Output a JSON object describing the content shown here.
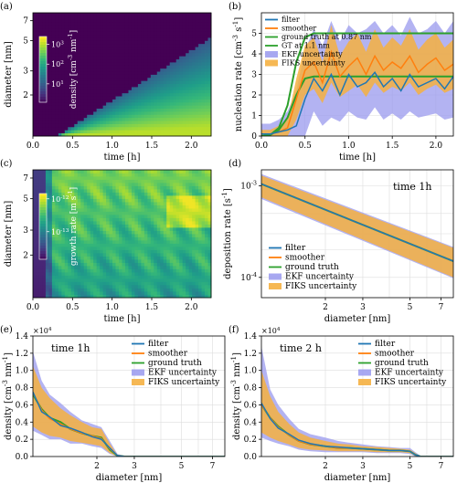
{
  "colors": {
    "filter": "#1f77b4",
    "smoother": "#ff7f0e",
    "ground_truth": "#2ca02c",
    "ekf": "#9999ee",
    "fiks": "#f5b041"
  },
  "chart_data": [
    {
      "id": "a",
      "type": "heatmap",
      "panel_label": "(a)",
      "xlabel": "time [h]",
      "ylabel": "diameter [nm]",
      "xlim": [
        0,
        2.25
      ],
      "ylim": [
        1,
        8
      ],
      "yscale": "log",
      "xticks": [
        "0.0",
        "0.5",
        "1.0",
        "1.5",
        "2.0"
      ],
      "yticks": [
        "2",
        "3",
        "5",
        "7"
      ],
      "colorbar": {
        "label": "density [cm^-3 nm^-1]",
        "ticks": [
          "10^1",
          "10^2",
          "10^3"
        ]
      },
      "description_values": {
        "boundary_time_at_diameter": [
          [
            0.3,
            1.0
          ],
          [
            0.7,
            1.55
          ],
          [
            1.2,
            2.3
          ],
          [
            1.7,
            3.4
          ],
          [
            2.25,
            4.9
          ]
        ]
      }
    },
    {
      "id": "b",
      "type": "line",
      "panel_label": "(b)",
      "xlabel": "time [h]",
      "ylabel": "nucleation rate [cm^-3 s^-1]",
      "xlim": [
        0,
        2.2
      ],
      "ylim": [
        0,
        6
      ],
      "xticks": [
        "0.0",
        "0.5",
        "1.0",
        "1.5",
        "2.0"
      ],
      "yticks": [
        "0",
        "1",
        "2",
        "3",
        "4",
        "5"
      ],
      "legend": [
        "filter",
        "smoother",
        "ground truth at 0.87 nm",
        "GT at 1.1 nm",
        "EKF uncertainty",
        "FIKS uncertainty"
      ],
      "x": [
        0.0,
        0.1,
        0.2,
        0.3,
        0.4,
        0.5,
        0.6,
        0.7,
        0.8,
        0.9,
        1.0,
        1.1,
        1.2,
        1.3,
        1.4,
        1.5,
        1.6,
        1.7,
        1.8,
        1.9,
        2.0,
        2.1,
        2.2
      ],
      "series": [
        {
          "name": "ground truth at 0.87 nm",
          "values": [
            0,
            0.05,
            0.3,
            0.9,
            2.0,
            2.8,
            2.9,
            2.9,
            2.9,
            2.9,
            2.9,
            2.9,
            2.9,
            2.9,
            2.9,
            2.9,
            2.9,
            2.9,
            2.9,
            2.9,
            2.9,
            2.9,
            2.9
          ]
        },
        {
          "name": "GT at 1.1 nm",
          "values": [
            0,
            0.05,
            0.4,
            1.5,
            3.6,
            4.8,
            5.0,
            5.0,
            5.0,
            5.0,
            5.0,
            5.0,
            5.0,
            5.0,
            5.0,
            5.0,
            5.0,
            5.0,
            5.0,
            5.0,
            5.0,
            5.0,
            5.0
          ]
        },
        {
          "name": "filter",
          "values": [
            0.1,
            0.1,
            0.2,
            0.3,
            0.5,
            1.8,
            2.8,
            2.2,
            3.0,
            2.0,
            3.0,
            2.4,
            2.6,
            3.1,
            2.4,
            2.8,
            2.2,
            3.0,
            2.4,
            2.6,
            2.8,
            2.3,
            2.9
          ]
        },
        {
          "name": "smoother",
          "values": [
            0.1,
            0.1,
            0.2,
            0.4,
            1.8,
            3.2,
            3.6,
            2.6,
            4.1,
            2.9,
            3.4,
            3.8,
            3.0,
            3.9,
            3.2,
            3.6,
            3.3,
            3.9,
            3.1,
            3.5,
            3.8,
            3.2,
            3.5
          ]
        }
      ],
      "bands": [
        {
          "name": "EKF uncertainty",
          "lower": [
            0,
            0,
            0,
            0,
            0,
            0,
            1.2,
            0.5,
            0.9,
            0.7,
            1.2,
            0.9,
            0.8,
            1.4,
            0.8,
            1.1,
            0.8,
            1.2,
            0.9,
            1.0,
            1.1,
            0.8,
            0.9
          ],
          "upper": [
            0.6,
            0.6,
            0.8,
            1.2,
            2.2,
            4.2,
            5.2,
            4.4,
            5.6,
            4.6,
            5.4,
            5.0,
            5.2,
            5.6,
            5.0,
            5.4,
            4.9,
            5.8,
            5.0,
            5.2,
            5.6,
            5.0,
            5.6
          ]
        },
        {
          "name": "FIKS uncertainty",
          "lower": [
            0,
            0,
            0,
            0,
            0.8,
            2.0,
            2.3,
            1.6,
            2.6,
            1.9,
            2.2,
            2.5,
            1.9,
            2.6,
            2.1,
            2.4,
            2.2,
            2.6,
            2.0,
            2.3,
            2.5,
            2.1,
            2.3
          ],
          "upper": [
            0.3,
            0.3,
            0.5,
            0.8,
            2.8,
            4.4,
            4.8,
            3.6,
            5.4,
            3.9,
            4.6,
            5.0,
            4.1,
            5.2,
            4.3,
            4.8,
            4.4,
            5.2,
            4.2,
            4.7,
            5.0,
            4.3,
            4.7
          ]
        }
      ]
    },
    {
      "id": "c",
      "type": "heatmap",
      "panel_label": "(c)",
      "xlabel": "time [h]",
      "ylabel": "diameter [nm]",
      "xlim": [
        0,
        2.25
      ],
      "ylim": [
        1,
        8
      ],
      "yscale": "log",
      "xticks": [
        "0.0",
        "0.5",
        "1.0",
        "1.5",
        "2.0"
      ],
      "yticks": [
        "2",
        "3",
        "5",
        "7"
      ],
      "colorbar": {
        "label": "growth rate [m s^-1]",
        "ticks": [
          "10^-12",
          "10^-13"
        ]
      }
    },
    {
      "id": "d",
      "type": "line",
      "panel_label": "(d)",
      "annotation": "time 1h",
      "xlabel": "diameter [nm]",
      "ylabel": "deposition rate [s^-1]",
      "xscale": "log",
      "yscale": "log",
      "xlim": [
        1,
        8
      ],
      "ylim": [
        6e-05,
        0.0015
      ],
      "xticks": [
        "2",
        "3",
        "5",
        "7"
      ],
      "yticks": [
        "10^-3",
        "10^-4"
      ],
      "legend": [
        "filter",
        "smoother",
        "ground truth",
        "EKF uncertainty",
        "FIKS uncertainty"
      ],
      "x": [
        1.0,
        8.0
      ],
      "series": [
        {
          "name": "ground truth",
          "values": [
            0.00105,
            0.00015
          ]
        },
        {
          "name": "filter",
          "values": [
            0.00105,
            0.00015
          ]
        },
        {
          "name": "smoother",
          "values": [
            0.00105,
            0.00015
          ]
        }
      ],
      "bands": [
        {
          "name": "EKF uncertainty",
          "lower": [
            0.00072,
            9.8e-05
          ],
          "upper": [
            0.00135,
            0.000215
          ]
        },
        {
          "name": "FIKS uncertainty",
          "lower": [
            0.00075,
            0.0001
          ],
          "upper": [
            0.0013,
            0.00021
          ]
        }
      ]
    },
    {
      "id": "e",
      "type": "line",
      "panel_label": "(e)",
      "annotation": "time 1h",
      "y_multiplier": "×10^4",
      "xlabel": "diameter [nm]",
      "ylabel": "density [cm^-3 nm^-1]",
      "xscale": "log",
      "xlim": [
        1,
        8
      ],
      "ylim": [
        0,
        1.4
      ],
      "xticks": [
        "2",
        "3",
        "5",
        "7"
      ],
      "yticks": [
        "0.0",
        "0.2",
        "0.4",
        "0.6",
        "0.8",
        "1.0",
        "1.2",
        "1.4"
      ],
      "legend": [
        "filter",
        "smoother",
        "ground truth",
        "EKF uncertainty",
        "FIKS uncertainty"
      ],
      "x": [
        1.0,
        1.1,
        1.2,
        1.35,
        1.5,
        1.7,
        1.9,
        2.1,
        2.3,
        2.5,
        2.7,
        3.0,
        4.0,
        5.0,
        6.0,
        8.0
      ],
      "series": [
        {
          "name": "ground truth",
          "values": [
            0.72,
            0.55,
            0.45,
            0.4,
            0.32,
            0.27,
            0.24,
            0.22,
            0.08,
            0.01,
            0,
            0,
            0,
            0,
            0,
            0
          ]
        },
        {
          "name": "filter",
          "values": [
            0.75,
            0.52,
            0.46,
            0.36,
            0.33,
            0.28,
            0.23,
            0.2,
            0.1,
            0.01,
            0,
            0,
            0,
            0,
            0,
            0
          ]
        },
        {
          "name": "smoother",
          "values": [
            0.74,
            0.54,
            0.44,
            0.38,
            0.32,
            0.27,
            0.24,
            0.21,
            0.09,
            0.01,
            0,
            0,
            0,
            0,
            0,
            0
          ]
        }
      ],
      "bands": [
        {
          "name": "EKF uncertainty",
          "lower": [
            0.3,
            0.25,
            0.2,
            0.2,
            0.15,
            0.15,
            0.12,
            0.1,
            0.03,
            0,
            0,
            0,
            0,
            0,
            0,
            0
          ],
          "upper": [
            1.22,
            0.88,
            0.72,
            0.62,
            0.52,
            0.42,
            0.38,
            0.34,
            0.18,
            0.03,
            0.01,
            0.01,
            0.01,
            0.01,
            0.01,
            0.01
          ]
        },
        {
          "name": "FIKS uncertainty",
          "lower": [
            0.35,
            0.28,
            0.24,
            0.22,
            0.18,
            0.16,
            0.14,
            0.12,
            0.04,
            0,
            0,
            0,
            0,
            0,
            0,
            0
          ],
          "upper": [
            1.05,
            0.8,
            0.68,
            0.56,
            0.48,
            0.4,
            0.34,
            0.32,
            0.15,
            0.02,
            0,
            0,
            0,
            0,
            0,
            0
          ]
        }
      ]
    },
    {
      "id": "f",
      "type": "line",
      "panel_label": "(f)",
      "annotation": "time 2 h",
      "y_multiplier": "×10^4",
      "xlabel": "diameter [nm]",
      "ylabel": "density [cm^-3 nm^-1]",
      "xscale": "log",
      "xlim": [
        1,
        8
      ],
      "ylim": [
        0,
        1.4
      ],
      "xticks": [
        "2",
        "3",
        "5",
        "7"
      ],
      "yticks": [
        "0.0",
        "0.2",
        "0.4",
        "0.6",
        "0.8",
        "1.0",
        "1.2",
        "1.4"
      ],
      "legend": [
        "filter",
        "smoother",
        "ground truth",
        "EKF uncertainty",
        "FIKS uncertainty"
      ],
      "x": [
        1.0,
        1.1,
        1.2,
        1.35,
        1.5,
        1.7,
        2.0,
        2.3,
        2.6,
        3.0,
        3.5,
        4.0,
        4.5,
        5.0,
        5.3,
        5.6,
        6.0,
        8.0
      ],
      "series": [
        {
          "name": "ground truth",
          "values": [
            0.6,
            0.45,
            0.35,
            0.25,
            0.18,
            0.14,
            0.12,
            0.1,
            0.1,
            0.09,
            0.08,
            0.07,
            0.07,
            0.06,
            0.02,
            0,
            0,
            0
          ]
        },
        {
          "name": "filter",
          "values": [
            0.62,
            0.44,
            0.33,
            0.26,
            0.19,
            0.15,
            0.12,
            0.11,
            0.1,
            0.09,
            0.08,
            0.07,
            0.07,
            0.06,
            0.02,
            0,
            0,
            0
          ]
        },
        {
          "name": "smoother",
          "values": [
            0.6,
            0.45,
            0.34,
            0.25,
            0.18,
            0.14,
            0.12,
            0.1,
            0.1,
            0.09,
            0.08,
            0.07,
            0.07,
            0.06,
            0.02,
            0,
            0,
            0
          ]
        }
      ],
      "bands": [
        {
          "name": "EKF uncertainty",
          "lower": [
            0.22,
            0.18,
            0.15,
            0.12,
            0.08,
            0.06,
            0.05,
            0.05,
            0.05,
            0.05,
            0.04,
            0.04,
            0.04,
            0.03,
            0,
            0,
            0,
            0
          ],
          "upper": [
            1.28,
            0.78,
            0.6,
            0.44,
            0.32,
            0.26,
            0.22,
            0.18,
            0.16,
            0.14,
            0.12,
            0.11,
            0.1,
            0.1,
            0.05,
            0.01,
            0.01,
            0.01
          ]
        },
        {
          "name": "FIKS uncertainty",
          "lower": [
            0.28,
            0.22,
            0.18,
            0.14,
            0.1,
            0.08,
            0.07,
            0.06,
            0.06,
            0.06,
            0.05,
            0.05,
            0.05,
            0.04,
            0.01,
            0,
            0,
            0
          ],
          "upper": [
            1.0,
            0.7,
            0.52,
            0.38,
            0.28,
            0.22,
            0.18,
            0.15,
            0.14,
            0.12,
            0.11,
            0.1,
            0.09,
            0.08,
            0.04,
            0,
            0,
            0
          ]
        }
      ]
    }
  ]
}
